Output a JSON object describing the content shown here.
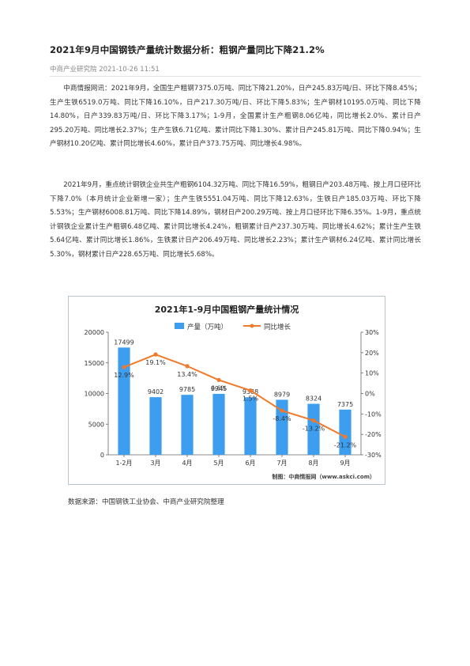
{
  "article": {
    "title": "2021年9月中国钢铁产量统计数据分析：粗钢产量同比下降21.2%",
    "source_line": "中商产业研究院 2021-10-26 11:51",
    "paragraph1": "中商情报网讯：2021年9月，全国生产粗钢7375.0万吨、同比下降21.20%，日产245.83万吨/日、环比下降8.45%；生产生铁6519.0万吨、同比下降16.10%，日产217.30万吨/日、环比下降5.83%；生产钢材10195.0万吨、同比下降14.80%，日产339.83万吨/日、环比下降3.17%；1-9月，全国累计生产粗钢8.06亿吨，同比增长2.0%、累计日产295.20万吨、同比增长2.37%；生产生铁6.71亿吨、累计同比下降1.30%、累计日产245.81万吨、同比下降0.94%；生产钢材10.20亿吨、累计同比增长4.60%，累计日产373.75万吨、同比增长4.98%。",
    "paragraph2": "2021年9月，重点统计钢铁企业共生产粗钢6104.32万吨、同比下降16.59%，粗钢日产203.48万吨、按上月口径环比下降7.0%（本月统计企业新增一家）；生产生铁5551.04万吨、同比下降12.63%，生铁日产185.03万吨、环比下降5.53%；生产钢材6008.81万吨、同比下降14.89%，钢材日产200.29万吨、按上月口径环比下降6.35%。1-9月，重点统计钢铁企业累计生产粗钢6.48亿吨、累计同比增长4.24%，粗钢累计日产237.30万吨、同比增长4.62%；累计生产生铁5.64亿吨、累计同比增长1.86%，生铁累计日产206.49万吨、同比增长2.23%；累计生产钢材6.24亿吨、累计同比增长5.30%，钢材累计日产228.65万吨、同比增长5.68%。",
    "data_source": "数据来源：中国钢铁工业协会、中商产业研究院整理"
  },
  "chart_data": {
    "type": "bar",
    "title": "2021年1-9月中国粗钢产量统计情况",
    "categories": [
      "1-2月",
      "3月",
      "4月",
      "5月",
      "6月",
      "7月",
      "8月",
      "9月"
    ],
    "series": [
      {
        "name": "产量（万吨）",
        "type": "bar",
        "axis": "left",
        "color": "#3d9ef0",
        "values": [
          17499,
          9402,
          9785,
          9945,
          9388,
          8979,
          8324,
          7375
        ]
      },
      {
        "name": "同比增长",
        "type": "line",
        "axis": "right",
        "color": "#f07a2a",
        "values": [
          12.9,
          19.1,
          13.4,
          6.6,
          1.5,
          -8.4,
          -13.2,
          -21.2
        ]
      }
    ],
    "data_labels_bar": [
      "17499",
      "9402",
      "9785",
      "9945",
      "9388",
      "8979",
      "8324",
      "7375"
    ],
    "data_labels_line": [
      "12.9%",
      "19.1%",
      "13.4%",
      "6.6%",
      "1.5%",
      "-8.4%",
      "-13.2%",
      "-21.2%"
    ],
    "y_left": {
      "min": 0,
      "max": 20000,
      "ticks": [
        "0",
        "5000",
        "10000",
        "15000",
        "20000"
      ]
    },
    "y_right": {
      "min": -30,
      "max": 30,
      "ticks": [
        "-30%",
        "-20%",
        "-10%",
        "0%",
        "10%",
        "20%",
        "30%"
      ]
    },
    "legend_position": "top",
    "credit": "制图：中商情报网（www.askci.com）"
  }
}
